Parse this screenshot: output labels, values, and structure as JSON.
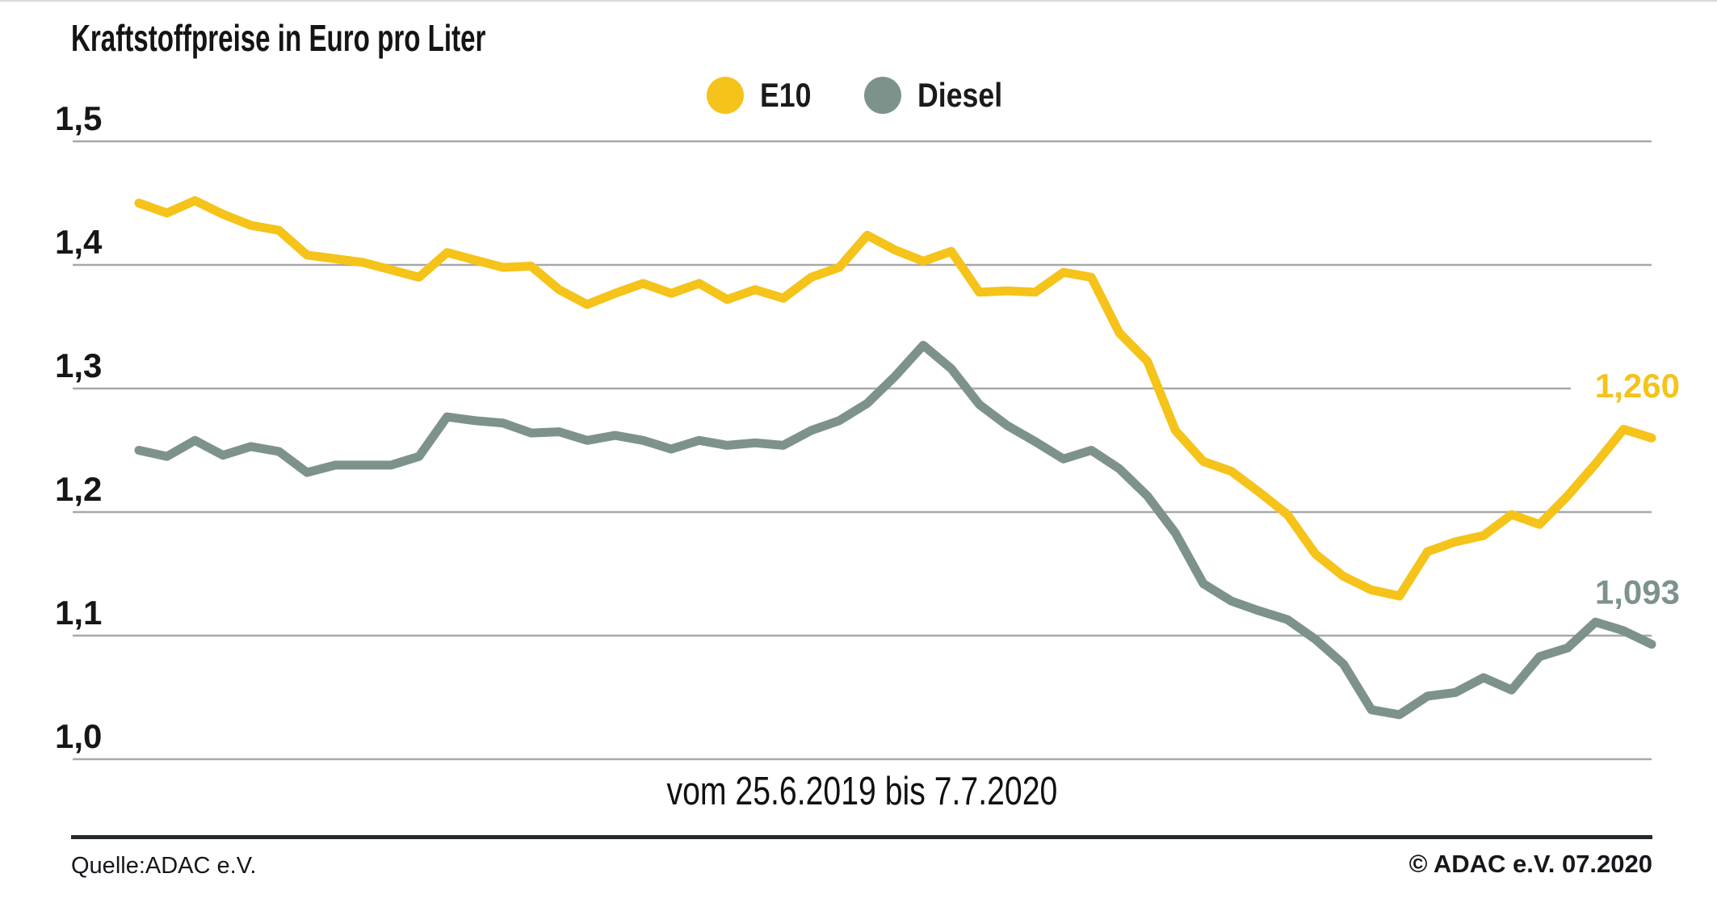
{
  "title": "Kraftstoffpreise in Euro pro Liter",
  "legend": [
    {
      "label": "E10",
      "color": "#F5C319",
      "icon": "circle"
    },
    {
      "label": "Diesel",
      "color": "#7E928C",
      "icon": "circle"
    }
  ],
  "footer": {
    "source": "Quelle:ADAC e.V.",
    "copyright": "© ADAC e.V. 07.2020"
  },
  "chart_data": {
    "type": "line",
    "title": "Kraftstoffpreise in Euro pro Liter",
    "x_caption": "vom 25.6.2019 bis 7.7.2020",
    "x_start": "25.6.2019",
    "x_end": "7.7.2020",
    "sampling": "weekly",
    "points_per_series": 55,
    "ylabel": "Euro pro Liter",
    "ylim": [
      1.0,
      1.5
    ],
    "yticks": [
      1.5,
      1.4,
      1.3,
      1.2,
      1.1,
      1.0
    ],
    "ytick_labels": [
      "1,5",
      "1,4",
      "1,3",
      "1,2",
      "1,1",
      "1,0"
    ],
    "grid": "horizontal",
    "grid_color": "#a8a8a8",
    "legend_position": "top-center",
    "series": [
      {
        "name": "E10",
        "color": "#F5C319",
        "end_label": "1,260",
        "end_value": 1.26,
        "values": [
          1.45,
          1.442,
          1.452,
          1.441,
          1.432,
          1.428,
          1.408,
          1.405,
          1.402,
          1.396,
          1.39,
          1.41,
          1.404,
          1.398,
          1.399,
          1.38,
          1.368,
          1.377,
          1.385,
          1.377,
          1.385,
          1.372,
          1.38,
          1.373,
          1.39,
          1.398,
          1.424,
          1.412,
          1.403,
          1.411,
          1.378,
          1.379,
          1.378,
          1.394,
          1.39,
          1.345,
          1.322,
          1.266,
          1.241,
          1.233,
          1.216,
          1.198,
          1.166,
          1.148,
          1.137,
          1.132,
          1.168,
          1.176,
          1.181,
          1.198,
          1.19,
          1.213,
          1.239,
          1.267,
          1.26
        ]
      },
      {
        "name": "Diesel",
        "color": "#7E928C",
        "end_label": "1,093",
        "end_value": 1.093,
        "values": [
          1.25,
          1.245,
          1.258,
          1.246,
          1.253,
          1.249,
          1.232,
          1.238,
          1.238,
          1.238,
          1.245,
          1.277,
          1.274,
          1.272,
          1.264,
          1.265,
          1.258,
          1.262,
          1.258,
          1.251,
          1.258,
          1.254,
          1.256,
          1.254,
          1.266,
          1.274,
          1.288,
          1.31,
          1.335,
          1.316,
          1.287,
          1.27,
          1.257,
          1.243,
          1.25,
          1.235,
          1.213,
          1.183,
          1.142,
          1.128,
          1.12,
          1.113,
          1.097,
          1.077,
          1.04,
          1.036,
          1.051,
          1.054,
          1.066,
          1.056,
          1.083,
          1.09,
          1.111,
          1.104,
          1.093
        ]
      }
    ]
  }
}
